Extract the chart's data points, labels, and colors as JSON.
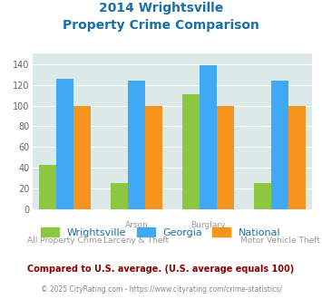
{
  "title_line1": "2014 Wrightsville",
  "title_line2": "Property Crime Comparison",
  "x_labels_top": [
    "",
    "Arson",
    "Burglary",
    ""
  ],
  "x_labels_bottom": [
    "All Property Crime",
    "Larceny & Theft",
    "",
    "Motor Vehicle Theft"
  ],
  "wrightsville": [
    43,
    25,
    111,
    25
  ],
  "georgia": [
    126,
    124,
    139,
    124
  ],
  "national": [
    100,
    100,
    100,
    100
  ],
  "colors": {
    "wrightsville": "#8dc63f",
    "georgia": "#3fa9f5",
    "national": "#f7941d"
  },
  "ylim": [
    0,
    150
  ],
  "yticks": [
    0,
    20,
    40,
    60,
    80,
    100,
    120,
    140
  ],
  "background_color": "#dce9e9",
  "title_color": "#1b6fa8",
  "axis_label_color": "#999999",
  "legend_label_color": "#1b6fa8",
  "note_text": "Compared to U.S. average. (U.S. average equals 100)",
  "footer_text": "© 2025 CityRating.com - https://www.cityrating.com/crime-statistics/",
  "note_color": "#8b0000",
  "footer_color": "#888888",
  "footer_link_color": "#3fa9f5"
}
